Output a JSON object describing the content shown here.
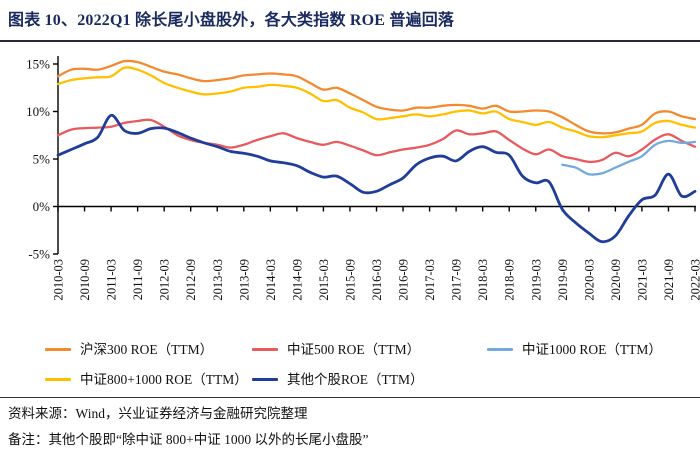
{
  "figure": {
    "title": "图表 10、2022Q1 除长尾小盘股外，各大类指数 ROE 普遍回落",
    "source": "资料来源：Wind，兴业证券经济与金融研究院整理",
    "note": "备注：其他个股即“除中证 800+中证 1000 以外的长尾小盘股”"
  },
  "colors": {
    "title_text": "#1b2a5e",
    "axis": "#000000",
    "hs300": "#F28A30",
    "csi500": "#E85A5E",
    "csi1000": "#74A9E0",
    "csi800_1000": "#FFC000",
    "others": "#1F3D99"
  },
  "chart_data": {
    "type": "line",
    "x_start": "2010-03",
    "x_freq": "quarterly",
    "x_tick_labels": [
      "2010-03",
      "2010-09",
      "2011-03",
      "2011-09",
      "2012-03",
      "2012-09",
      "2013-03",
      "2013-09",
      "2014-03",
      "2014-09",
      "2015-03",
      "2015-09",
      "2016-03",
      "2016-09",
      "2017-03",
      "2017-09",
      "2018-03",
      "2018-09",
      "2019-03",
      "2019-09",
      "2020-03",
      "2020-09",
      "2021-03",
      "2021-09",
      "2022-03"
    ],
    "y_tick_labels": [
      "15%",
      "10%",
      "5%",
      "0%",
      "-5%"
    ],
    "y_tick_values": [
      15,
      10,
      5,
      0,
      -5
    ],
    "ylim": [
      -5,
      15
    ],
    "grid": false,
    "legend_position": "bottom",
    "series": [
      {
        "name": "沪深300 ROE（TTM）",
        "color": "#F28A30",
        "stroke_width": 2.3,
        "start_index": 0,
        "values": [
          13.7,
          14.4,
          14.5,
          14.4,
          14.8,
          15.3,
          15.2,
          14.7,
          14.2,
          13.9,
          13.5,
          13.2,
          13.3,
          13.5,
          13.8,
          13.9,
          14.0,
          13.9,
          13.7,
          13.0,
          12.3,
          12.5,
          11.9,
          11.2,
          10.5,
          10.2,
          10.1,
          10.4,
          10.4,
          10.6,
          10.7,
          10.6,
          10.3,
          10.6,
          10.0,
          10.0,
          10.1,
          10.0,
          9.4,
          8.6,
          7.9,
          7.7,
          7.8,
          8.2,
          8.6,
          9.8,
          10.0,
          9.5,
          9.2
        ]
      },
      {
        "name": "中证800+1000 ROE（TTM）",
        "color": "#FFC000",
        "stroke_width": 2.3,
        "start_index": 0,
        "values": [
          12.9,
          13.3,
          13.5,
          13.6,
          13.7,
          14.6,
          14.4,
          13.8,
          13.0,
          12.5,
          12.1,
          11.8,
          11.9,
          12.1,
          12.5,
          12.6,
          12.8,
          12.7,
          12.5,
          11.9,
          11.1,
          11.2,
          10.4,
          9.9,
          9.2,
          9.3,
          9.5,
          9.7,
          9.5,
          9.7,
          10.0,
          10.1,
          9.8,
          10.0,
          9.2,
          8.9,
          8.6,
          8.9,
          8.3,
          7.9,
          7.4,
          7.3,
          7.5,
          7.7,
          7.9,
          8.8,
          9.0,
          8.6,
          8.3
        ]
      },
      {
        "name": "中证500 ROE（TTM）",
        "color": "#E85A5E",
        "stroke_width": 2.3,
        "start_index": 0,
        "values": [
          7.5,
          8.1,
          8.25,
          8.3,
          8.4,
          8.8,
          9.0,
          9.1,
          8.4,
          7.5,
          7.0,
          6.7,
          6.5,
          6.2,
          6.5,
          7.0,
          7.4,
          7.7,
          7.2,
          6.8,
          6.5,
          6.8,
          6.4,
          5.9,
          5.4,
          5.7,
          6.0,
          6.2,
          6.5,
          7.1,
          8.0,
          7.6,
          7.7,
          7.9,
          7.0,
          6.1,
          5.5,
          6.0,
          5.3,
          5.0,
          4.7,
          4.9,
          5.65,
          5.3,
          6.0,
          7.05,
          7.6,
          6.9,
          6.3
        ]
      },
      {
        "name": "中证1000 ROE（TTM）",
        "color": "#74A9E0",
        "stroke_width": 2.3,
        "start_index": 38,
        "values": [
          4.4,
          4.1,
          3.4,
          3.5,
          4.1,
          4.7,
          5.3,
          6.5,
          6.9,
          6.7,
          6.8
        ]
      },
      {
        "name": "其他个股ROE（TTM）",
        "color": "#1F3D99",
        "stroke_width": 2.8,
        "start_index": 0,
        "values": [
          5.4,
          6.0,
          6.6,
          7.3,
          9.6,
          8.0,
          7.7,
          8.2,
          8.25,
          7.8,
          7.2,
          6.7,
          6.3,
          5.8,
          5.6,
          5.3,
          4.8,
          4.6,
          4.3,
          3.6,
          3.1,
          3.2,
          2.4,
          1.5,
          1.6,
          2.3,
          3.0,
          4.4,
          5.1,
          5.3,
          4.8,
          5.8,
          6.3,
          5.7,
          5.4,
          3.2,
          2.5,
          2.6,
          -0.3,
          -1.7,
          -2.8,
          -3.7,
          -3.1,
          -1.0,
          0.7,
          1.2,
          3.4,
          1.1,
          1.6
        ]
      }
    ]
  },
  "legend": {
    "rows": [
      [
        {
          "series": 0
        },
        {
          "series": 2
        },
        {
          "series": 3
        }
      ],
      [
        {
          "series": 1
        },
        {
          "series": 4
        }
      ]
    ]
  }
}
